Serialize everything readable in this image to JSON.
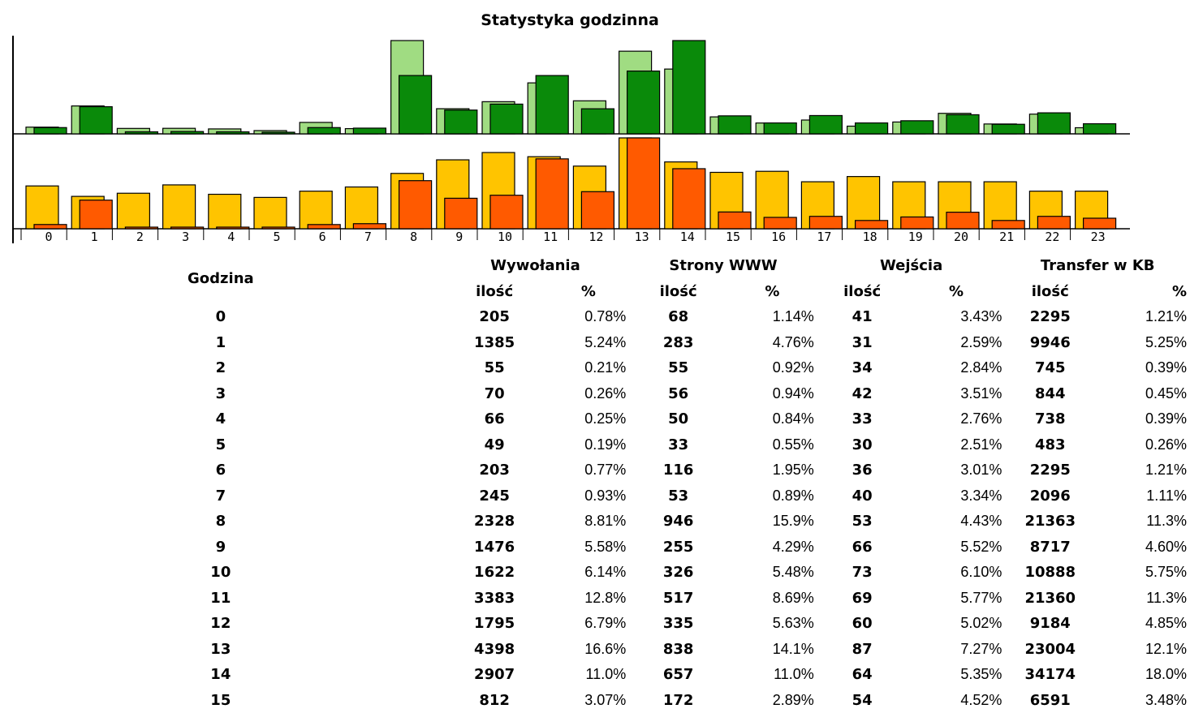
{
  "chart_data": {
    "type": "bar",
    "title": "Statystyka godzinna",
    "categories": [
      "0",
      "1",
      "2",
      "3",
      "4",
      "5",
      "6",
      "7",
      "8",
      "9",
      "10",
      "11",
      "12",
      "13",
      "14",
      "15",
      "16",
      "17",
      "18",
      "19",
      "20",
      "21",
      "22",
      "23"
    ],
    "upper_series": [
      {
        "name": "Strony WWW",
        "color": "#a0dc82",
        "values": [
          68,
          283,
          55,
          56,
          50,
          33,
          116,
          53,
          946,
          255,
          326,
          517,
          335,
          838,
          657,
          172,
          110,
          140,
          78,
          120,
          208,
          100,
          200,
          62
        ]
      },
      {
        "name": "Transfer w KB",
        "color": "#0a8a0a",
        "values": [
          2295,
          9946,
          745,
          844,
          738,
          483,
          2295,
          2096,
          21363,
          8717,
          10888,
          21360,
          9184,
          23004,
          34174,
          6591,
          4000,
          6700,
          4000,
          4800,
          7000,
          3500,
          7700,
          3700
        ]
      }
    ],
    "lower_series": [
      {
        "name": "Wejścia",
        "color": "#ffc400",
        "values": [
          41,
          31,
          34,
          42,
          33,
          30,
          36,
          40,
          53,
          66,
          73,
          69,
          60,
          87,
          64,
          54,
          55,
          45,
          50,
          45,
          45,
          45,
          36,
          36
        ]
      },
      {
        "name": "Wywołania",
        "color": "#ff5a00",
        "values": [
          205,
          1385,
          55,
          70,
          66,
          49,
          203,
          245,
          2328,
          1476,
          1622,
          3383,
          1795,
          4398,
          2907,
          812,
          550,
          600,
          400,
          570,
          800,
          400,
          600,
          510
        ]
      }
    ]
  },
  "table": {
    "hour_header": "Godzina",
    "groups": [
      "Wywołania",
      "Strony WWW",
      "Wejścia",
      "Transfer w KB"
    ],
    "count_label": "ilość",
    "pct_label": "%",
    "rows": [
      {
        "hour": "0",
        "vals": [
          "205",
          "0.78%",
          "68",
          "1.14%",
          "41",
          "3.43%",
          "2295",
          "1.21%"
        ]
      },
      {
        "hour": "1",
        "vals": [
          "1385",
          "5.24%",
          "283",
          "4.76%",
          "31",
          "2.59%",
          "9946",
          "5.25%"
        ]
      },
      {
        "hour": "2",
        "vals": [
          "55",
          "0.21%",
          "55",
          "0.92%",
          "34",
          "2.84%",
          "745",
          "0.39%"
        ]
      },
      {
        "hour": "3",
        "vals": [
          "70",
          "0.26%",
          "56",
          "0.94%",
          "42",
          "3.51%",
          "844",
          "0.45%"
        ]
      },
      {
        "hour": "4",
        "vals": [
          "66",
          "0.25%",
          "50",
          "0.84%",
          "33",
          "2.76%",
          "738",
          "0.39%"
        ]
      },
      {
        "hour": "5",
        "vals": [
          "49",
          "0.19%",
          "33",
          "0.55%",
          "30",
          "2.51%",
          "483",
          "0.26%"
        ]
      },
      {
        "hour": "6",
        "vals": [
          "203",
          "0.77%",
          "116",
          "1.95%",
          "36",
          "3.01%",
          "2295",
          "1.21%"
        ]
      },
      {
        "hour": "7",
        "vals": [
          "245",
          "0.93%",
          "53",
          "0.89%",
          "40",
          "3.34%",
          "2096",
          "1.11%"
        ]
      },
      {
        "hour": "8",
        "vals": [
          "2328",
          "8.81%",
          "946",
          "15.9%",
          "53",
          "4.43%",
          "21363",
          "11.3%"
        ]
      },
      {
        "hour": "9",
        "vals": [
          "1476",
          "5.58%",
          "255",
          "4.29%",
          "66",
          "5.52%",
          "8717",
          "4.60%"
        ]
      },
      {
        "hour": "10",
        "vals": [
          "1622",
          "6.14%",
          "326",
          "5.48%",
          "73",
          "6.10%",
          "10888",
          "5.75%"
        ]
      },
      {
        "hour": "11",
        "vals": [
          "3383",
          "12.8%",
          "517",
          "8.69%",
          "69",
          "5.77%",
          "21360",
          "11.3%"
        ]
      },
      {
        "hour": "12",
        "vals": [
          "1795",
          "6.79%",
          "335",
          "5.63%",
          "60",
          "5.02%",
          "9184",
          "4.85%"
        ]
      },
      {
        "hour": "13",
        "vals": [
          "4398",
          "16.6%",
          "838",
          "14.1%",
          "87",
          "7.27%",
          "23004",
          "12.1%"
        ]
      },
      {
        "hour": "14",
        "vals": [
          "2907",
          "11.0%",
          "657",
          "11.0%",
          "64",
          "5.35%",
          "34174",
          "18.0%"
        ]
      },
      {
        "hour": "15",
        "vals": [
          "812",
          "3.07%",
          "172",
          "2.89%",
          "54",
          "4.52%",
          "6591",
          "3.48%"
        ]
      }
    ]
  }
}
